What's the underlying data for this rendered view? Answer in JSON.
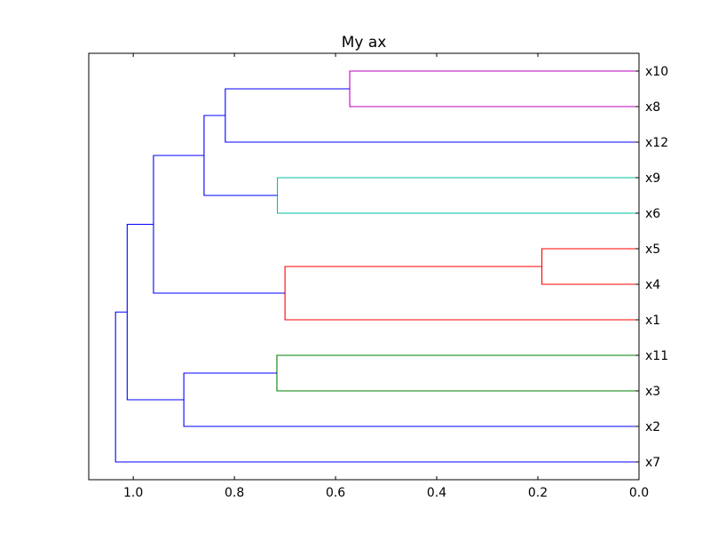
{
  "chart_data": {
    "type": "dendrogram",
    "title": "My ax",
    "orientation": "left",
    "xlim": [
      1.088,
      0.0
    ],
    "x_ticks": [
      1.0,
      0.8,
      0.6,
      0.4,
      0.2,
      0.0
    ],
    "x_tick_labels": [
      "1.0",
      "0.8",
      "0.6",
      "0.4",
      "0.2",
      "0.0"
    ],
    "grid": false,
    "leaves": [
      "x10",
      "x8",
      "x12",
      "x9",
      "x6",
      "x5",
      "x4",
      "x1",
      "x11",
      "x3",
      "x2",
      "x7"
    ],
    "links": [
      {
        "a": "x10",
        "b": "x8",
        "height": 0.572,
        "color": "#bf00bf"
      },
      {
        "a": "x9",
        "b": "x6",
        "height": 0.715,
        "color": "#00bfa0"
      },
      {
        "a": "x5",
        "b": "x4",
        "height": 0.192,
        "color": "#ff0000"
      },
      {
        "a": "x11",
        "b": "x3",
        "height": 0.716,
        "color": "#008000"
      },
      {
        "a": "c0",
        "b": "x12",
        "height": 0.818,
        "color": "#0000ff"
      },
      {
        "a": "c4",
        "b": "c1",
        "height": 0.86,
        "color": "#0000ff"
      },
      {
        "a": "c2",
        "b": "x1",
        "height": 0.7,
        "color": "#ff0000"
      },
      {
        "a": "c5",
        "b": "c6",
        "height": 0.96,
        "color": "#0000ff"
      },
      {
        "a": "c3",
        "b": "x2",
        "height": 0.9,
        "color": "#0000ff"
      },
      {
        "a": "c7",
        "b": "c8",
        "height": 1.012,
        "color": "#0000ff"
      },
      {
        "a": "c9",
        "b": "x7",
        "height": 1.035,
        "color": "#0000ff"
      }
    ]
  }
}
